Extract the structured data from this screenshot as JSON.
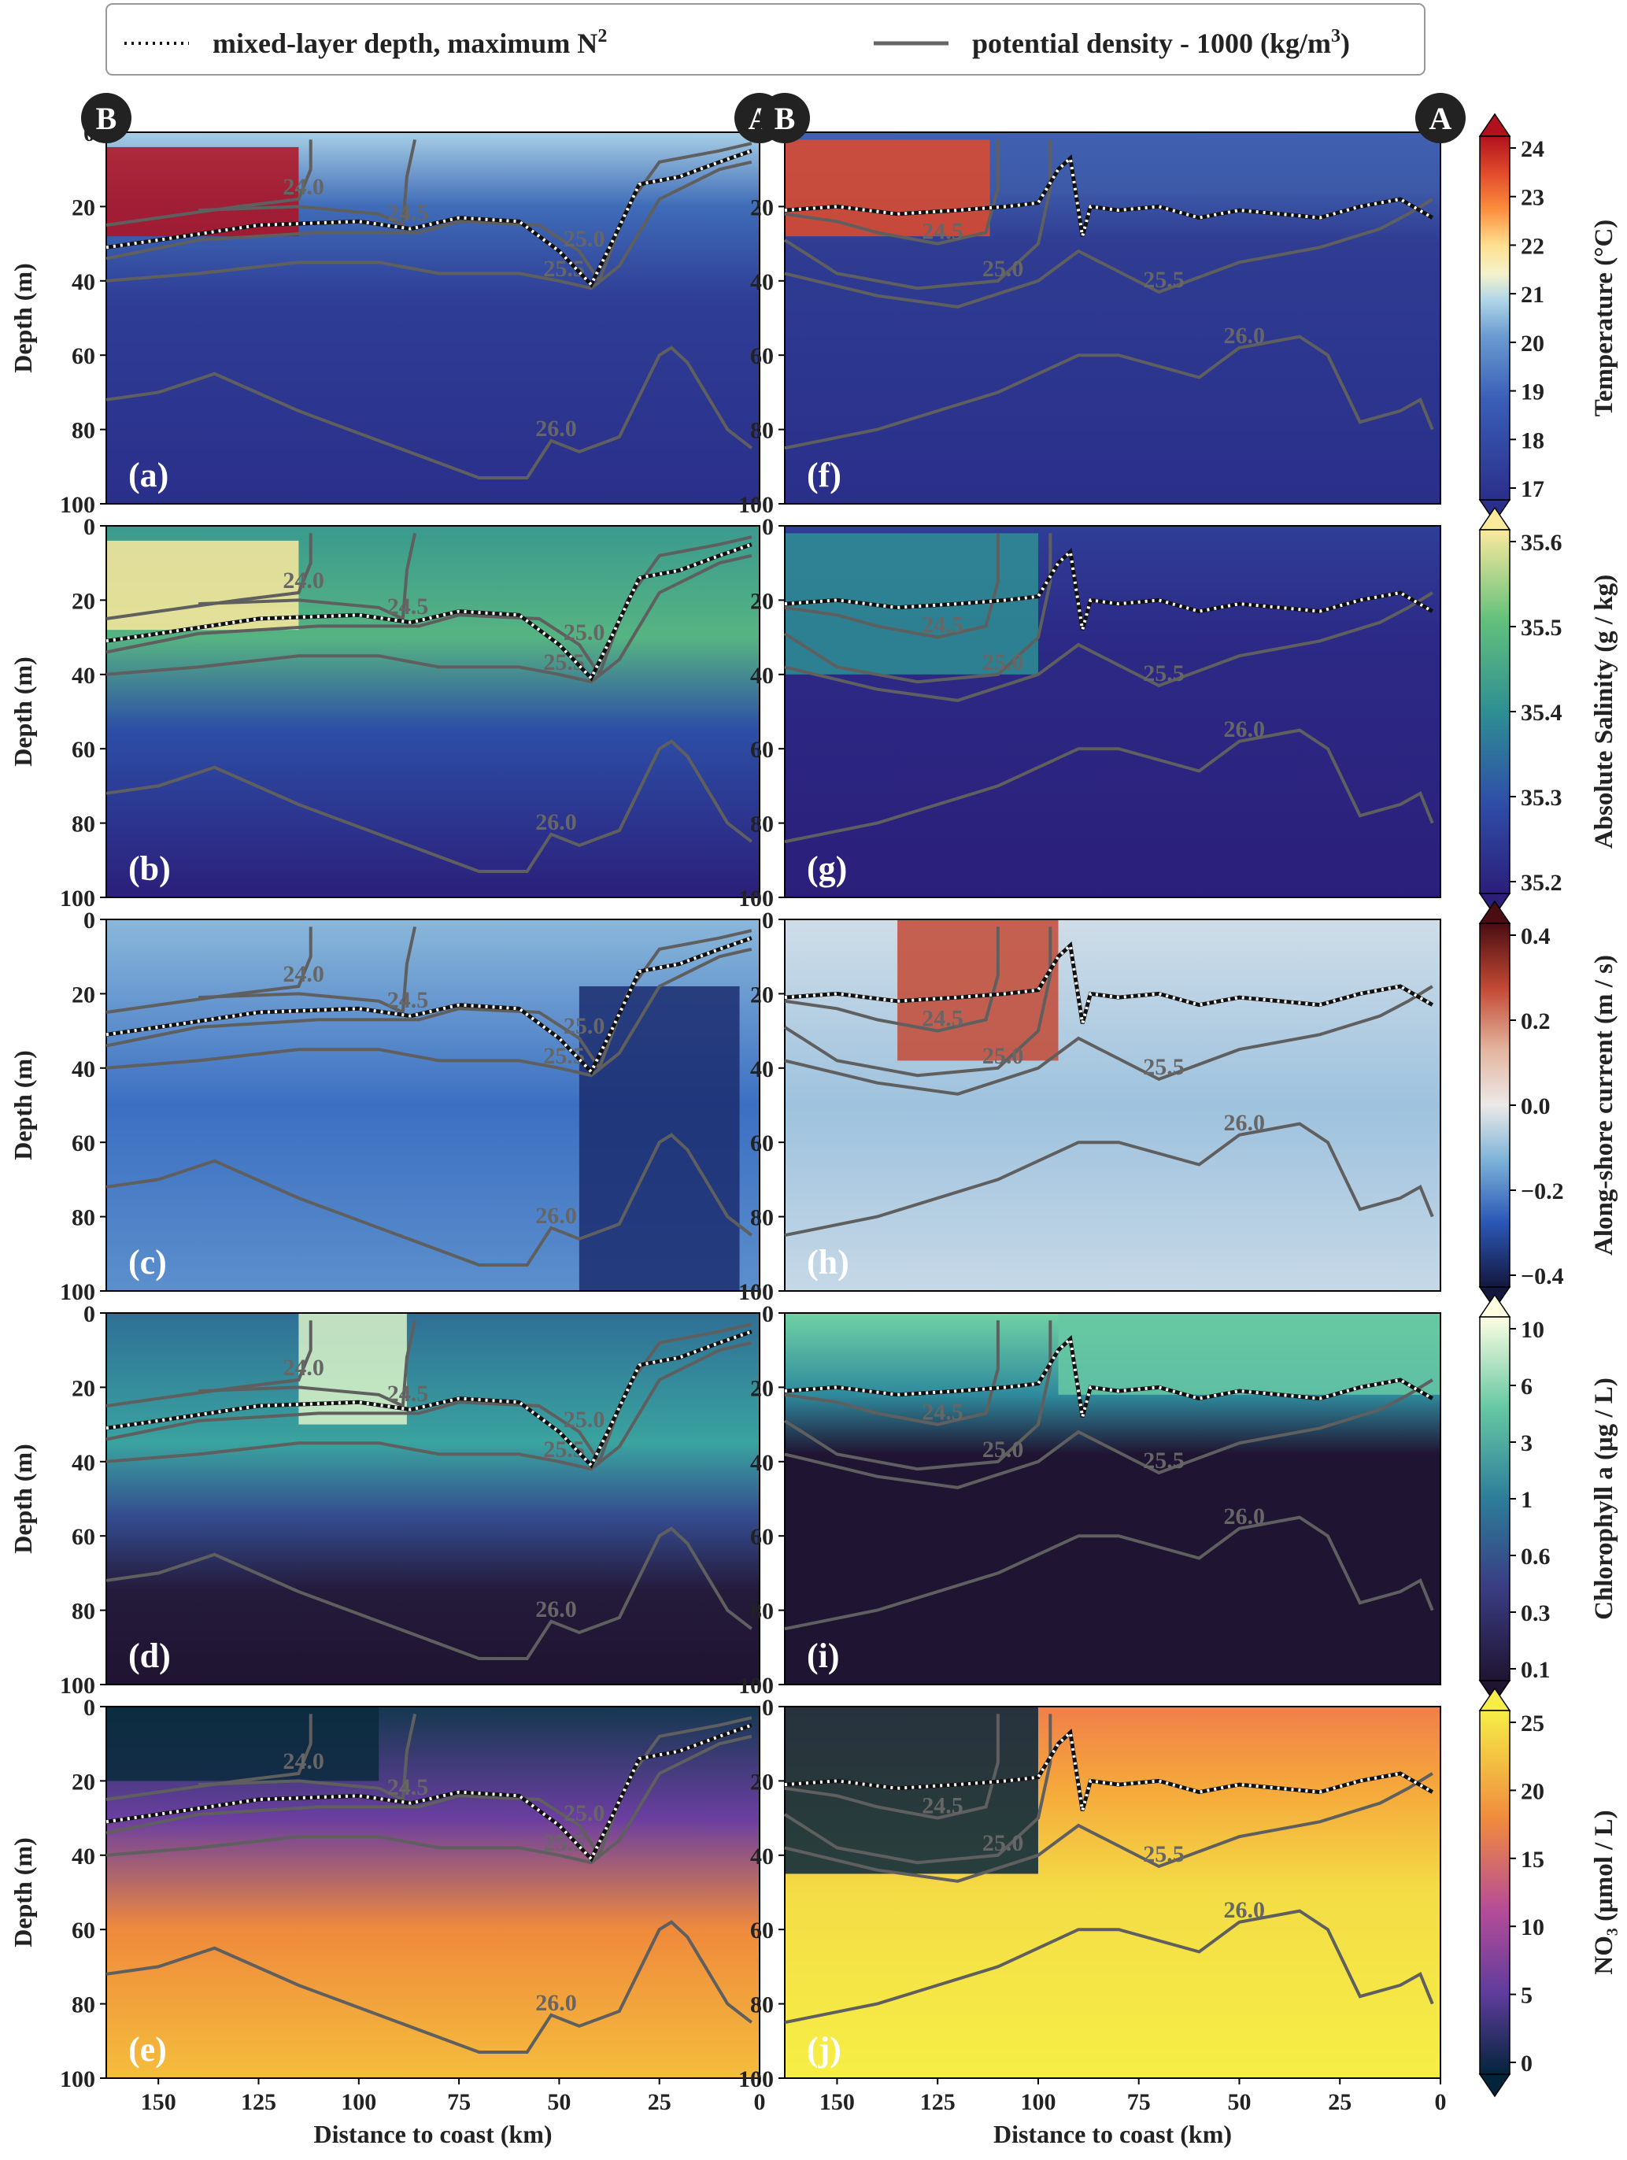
{
  "legend": {
    "dotted_label": "mixed-layer depth, maximum N",
    "dotted_sup": "2",
    "solid_label": "potential density - 1000 (kg/m",
    "solid_sup": "3",
    "solid_tail": ")"
  },
  "section_markers": {
    "start": "B",
    "end": "A"
  },
  "axes": {
    "ylabel": "Depth (m)",
    "xlabel": "Distance to coast (km)",
    "y_ticks": [
      "0",
      "20",
      "40",
      "60",
      "80",
      "100"
    ],
    "x_ticks": [
      "150",
      "125",
      "100",
      "75",
      "50",
      "25",
      "0"
    ]
  },
  "colorbars": [
    {
      "label": "Temperature (°C)",
      "ticks": [
        "24",
        "23",
        "22",
        "21",
        "20",
        "19",
        "18",
        "17"
      ]
    },
    {
      "label": "Absolute Salinity (g / kg)",
      "ticks": [
        "35.6",
        "35.5",
        "35.4",
        "35.3",
        "35.2"
      ]
    },
    {
      "label": "Along-shore current (m / s)",
      "ticks": [
        "0.4",
        "0.2",
        "0.0",
        "−0.2",
        "−0.4"
      ]
    },
    {
      "label": "Chlorophyll a (μg / L)",
      "ticks": [
        "10",
        "6",
        "3",
        "1",
        "0.6",
        "0.3",
        "0.1"
      ]
    },
    {
      "label": "NO₃ (μmol / L)",
      "ticks": [
        "25",
        "20",
        "15",
        "10",
        "5",
        "0"
      ]
    }
  ],
  "panel_labels": {
    "left": [
      "(a)",
      "(b)",
      "(c)",
      "(d)",
      "(e)"
    ],
    "right": [
      "(f)",
      "(g)",
      "(h)",
      "(i)",
      "(j)"
    ]
  },
  "contour_labels": {
    "a": [
      "24.0",
      "24.5",
      "25.0",
      "25.5",
      "26.0"
    ],
    "b": [
      "24.0",
      "24.5",
      "25.0",
      "25.5",
      "26.0"
    ],
    "c": [
      "24.0",
      "24.5",
      "25.0",
      "25.5",
      "26.0"
    ],
    "d": [
      "24.0",
      "24.5",
      "25.0",
      "25.5",
      "26.0"
    ],
    "e": [
      "24.0",
      "24.5",
      "25.0",
      "25.5",
      "26.0"
    ],
    "f": [
      "24.5",
      "25.0",
      "25.5",
      "26.0"
    ],
    "g": [
      "24.5",
      "25.0",
      "25.5",
      "26.0"
    ],
    "h": [
      "24.5",
      "25.0",
      "25.5",
      "26.0"
    ],
    "i": [
      "24.5",
      "25.0",
      "25.5",
      "26.0"
    ],
    "j": [
      "24.5",
      "25.0",
      "25.5",
      "26.0"
    ]
  },
  "chart_data": {
    "type": "heatmap",
    "x_range_km": [
      163,
      0
    ],
    "y_range_m": [
      0,
      100
    ],
    "rows": [
      "temperature",
      "salinity",
      "alongshore_current",
      "chlorophyll",
      "nitrate"
    ],
    "colorbar_ranges": {
      "temperature": [
        16.5,
        24
      ],
      "salinity": [
        35.15,
        35.6
      ],
      "alongshore_current": [
        -0.45,
        0.45
      ],
      "chlorophyll_log": [
        0.1,
        10
      ],
      "nitrate": [
        0,
        25
      ]
    },
    "sections": {
      "left": {
        "mld": {
          "x": [
            163,
            150,
            125,
            100,
            87,
            75,
            60,
            50,
            42,
            37,
            30,
            20,
            10,
            2
          ],
          "y": [
            31,
            29,
            25,
            24,
            26,
            23,
            24,
            32,
            41,
            30,
            14,
            12,
            8,
            5
          ]
        },
        "isopycnals": [
          {
            "label": "24.0",
            "x": [
              163,
              150,
              130,
              115,
              112,
              112
            ],
            "y": [
              25,
              23,
              20,
              18,
              10,
              2
            ]
          },
          {
            "label": "24.5",
            "x": [
              140,
              115,
              95,
              89,
              88,
              86
            ],
            "y": [
              21,
              20,
              22,
              25,
              12,
              2
            ]
          },
          {
            "label": "25.0",
            "x": [
              163,
              140,
              110,
              85,
              75,
              55,
              45,
              40,
              33,
              25,
              10,
              2
            ],
            "y": [
              34,
              29,
              27,
              27,
              24,
              25,
              32,
              40,
              20,
              8,
              5,
              3
            ]
          },
          {
            "label": "25.5",
            "x": [
              163,
              140,
              115,
              95,
              80,
              60,
              50,
              42,
              35,
              25,
              10,
              2
            ],
            "y": [
              40,
              38,
              35,
              35,
              38,
              38,
              40,
              42,
              36,
              18,
              10,
              8
            ]
          },
          {
            "label": "26.0",
            "x": [
              163,
              150,
              136,
              115,
              90,
              70,
              58,
              52,
              45,
              35,
              25,
              22,
              18,
              8,
              2
            ],
            "y": [
              72,
              70,
              65,
              75,
              85,
              93,
              93,
              83,
              86,
              82,
              60,
              58,
              62,
              80,
              85
            ]
          }
        ]
      },
      "right": {
        "mld": {
          "x": [
            163,
            150,
            135,
            120,
            108,
            100,
            95,
            92,
            89,
            87,
            80,
            70,
            60,
            50,
            40,
            30,
            20,
            10,
            2
          ],
          "y": [
            21,
            20,
            22,
            21,
            20,
            19,
            10,
            7,
            28,
            20,
            21,
            20,
            23,
            21,
            22,
            23,
            20,
            18,
            23
          ]
        },
        "isopycnals": [
          {
            "label": "24.5",
            "x": [
              163,
              150,
              140,
              125,
              113,
              110,
              110
            ],
            "y": [
              22,
              24,
              27,
              30,
              27,
              15,
              2
            ]
          },
          {
            "label": "25.0",
            "x": [
              163,
              150,
              130,
              110,
              100,
              97,
              97
            ],
            "y": [
              29,
              38,
              42,
              40,
              30,
              15,
              2
            ]
          },
          {
            "label": "25.5",
            "x": [
              163,
              140,
              120,
              100,
              90,
              70,
              50,
              30,
              15,
              8,
              2
            ],
            "y": [
              38,
              44,
              47,
              40,
              32,
              43,
              35,
              31,
              26,
              22,
              18
            ]
          },
          {
            "label": "26.0",
            "x": [
              163,
              140,
              110,
              90,
              80,
              60,
              50,
              35,
              28,
              20,
              10,
              5,
              2
            ],
            "y": [
              85,
              80,
              70,
              60,
              60,
              66,
              58,
              55,
              60,
              78,
              75,
              72,
              80
            ]
          }
        ]
      }
    }
  }
}
